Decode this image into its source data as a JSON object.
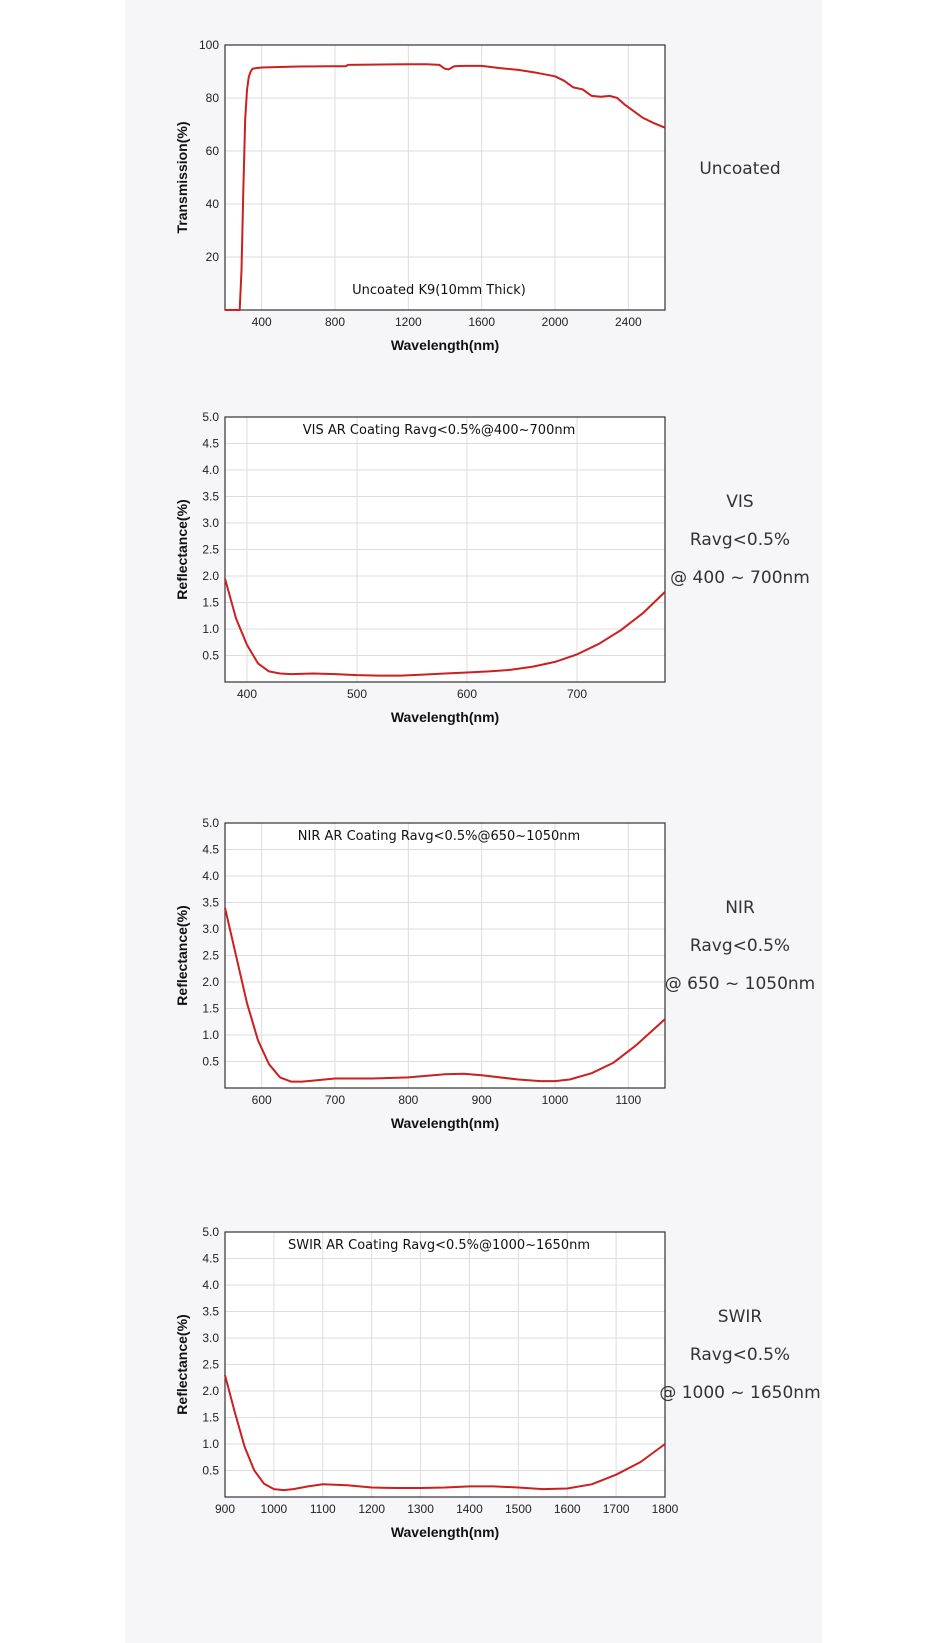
{
  "colors": {
    "curve": "#cc1f1f",
    "grid": "#dcdcdc",
    "axes": "#333333",
    "panel_bg": "#f6f6f8"
  },
  "charts": [
    {
      "side_lines": [
        "Uncoated"
      ],
      "chart_data": {
        "type": "line",
        "annotation": "Uncoated K9(10mm Thick)",
        "xlabel": "Wavelength(nm)",
        "ylabel": "Transmission(%)",
        "xlim": [
          200,
          2600
        ],
        "ylim": [
          0,
          100
        ],
        "xticks": [
          400,
          800,
          1200,
          1600,
          2000,
          2400
        ],
        "yticks": [
          20,
          40,
          60,
          80,
          100
        ],
        "grid": true,
        "x": [
          200,
          280,
          290,
          300,
          310,
          320,
          330,
          340,
          350,
          370,
          400,
          500,
          600,
          800,
          860,
          870,
          1000,
          1200,
          1300,
          1370,
          1400,
          1420,
          1450,
          1500,
          1600,
          1700,
          1800,
          1900,
          2000,
          2050,
          2100,
          2150,
          2200,
          2250,
          2300,
          2340,
          2380,
          2420,
          2480,
          2540,
          2600
        ],
        "y": [
          0,
          0,
          15,
          45,
          72,
          83,
          88,
          90,
          91,
          91.3,
          91.5,
          91.7,
          91.9,
          92,
          92,
          92.5,
          92.6,
          92.7,
          92.7,
          92.5,
          91,
          90.8,
          92,
          92.1,
          92.1,
          91.3,
          90.6,
          89.5,
          88.2,
          86.5,
          84,
          83.3,
          80.8,
          80.5,
          80.8,
          80,
          77.5,
          75.5,
          72.5,
          70.5,
          68.8
        ]
      }
    },
    {
      "side_lines": [
        "VIS",
        "Ravg<0.5%",
        "@ 400 ~ 700nm"
      ],
      "chart_data": {
        "type": "line",
        "annotation": "VIS AR Coating Ravg<0.5%@400~700nm",
        "xlabel": "Wavelength(nm)",
        "ylabel": "Reflectance(%)",
        "xlim": [
          380,
          780
        ],
        "ylim": [
          0,
          5
        ],
        "xticks": [
          400,
          500,
          600,
          700
        ],
        "yticks": [
          0.5,
          1.0,
          1.5,
          2.0,
          2.5,
          3.0,
          3.5,
          4.0,
          4.5,
          5.0
        ],
        "grid": true,
        "x": [
          380,
          390,
          400,
          410,
          420,
          430,
          440,
          460,
          480,
          500,
          520,
          540,
          560,
          580,
          600,
          620,
          640,
          660,
          680,
          700,
          720,
          740,
          760,
          780
        ],
        "y": [
          1.95,
          1.2,
          0.7,
          0.35,
          0.2,
          0.16,
          0.15,
          0.16,
          0.15,
          0.13,
          0.12,
          0.12,
          0.14,
          0.16,
          0.18,
          0.2,
          0.23,
          0.29,
          0.38,
          0.52,
          0.72,
          0.98,
          1.3,
          1.7
        ]
      }
    },
    {
      "side_lines": [
        "NIR",
        "Ravg<0.5%",
        "@ 650 ~ 1050nm"
      ],
      "chart_data": {
        "type": "line",
        "annotation": "NIR AR Coating Ravg<0.5%@650~1050nm",
        "xlabel": "Wavelength(nm)",
        "ylabel": "Reflectance(%)",
        "xlim": [
          550,
          1150
        ],
        "ylim": [
          0,
          5
        ],
        "xticks": [
          600,
          700,
          800,
          900,
          1000,
          1100
        ],
        "yticks": [
          0.5,
          1.0,
          1.5,
          2.0,
          2.5,
          3.0,
          3.5,
          4.0,
          4.5,
          5.0
        ],
        "grid": true,
        "x": [
          550,
          565,
          580,
          595,
          610,
          625,
          640,
          655,
          670,
          700,
          750,
          800,
          850,
          875,
          900,
          950,
          980,
          1000,
          1020,
          1050,
          1080,
          1110,
          1150
        ],
        "y": [
          3.4,
          2.5,
          1.6,
          0.9,
          0.45,
          0.2,
          0.12,
          0.12,
          0.14,
          0.18,
          0.18,
          0.2,
          0.26,
          0.27,
          0.24,
          0.16,
          0.13,
          0.13,
          0.16,
          0.28,
          0.48,
          0.8,
          1.3
        ]
      }
    },
    {
      "side_lines": [
        "SWIR",
        "Ravg<0.5%",
        "@ 1000 ~ 1650nm"
      ],
      "chart_data": {
        "type": "line",
        "annotation": "SWIR AR Coating Ravg<0.5%@1000~1650nm",
        "xlabel": "Wavelength(nm)",
        "ylabel": "Reflectance(%)",
        "xlim": [
          900,
          1800
        ],
        "ylim": [
          0,
          5
        ],
        "xticks": [
          900,
          1000,
          1100,
          1200,
          1300,
          1400,
          1500,
          1600,
          1700,
          1800
        ],
        "yticks": [
          0.5,
          1.0,
          1.5,
          2.0,
          2.5,
          3.0,
          3.5,
          4.0,
          4.5,
          5.0
        ],
        "grid": true,
        "x": [
          900,
          920,
          940,
          960,
          980,
          1000,
          1020,
          1040,
          1070,
          1100,
          1150,
          1200,
          1250,
          1300,
          1350,
          1400,
          1450,
          1500,
          1550,
          1600,
          1650,
          1700,
          1750,
          1800
        ],
        "y": [
          2.3,
          1.6,
          0.95,
          0.5,
          0.25,
          0.15,
          0.13,
          0.15,
          0.2,
          0.24,
          0.22,
          0.18,
          0.17,
          0.17,
          0.18,
          0.2,
          0.2,
          0.18,
          0.15,
          0.16,
          0.24,
          0.42,
          0.66,
          1.0
        ]
      }
    }
  ]
}
